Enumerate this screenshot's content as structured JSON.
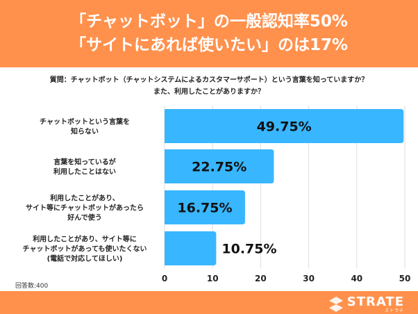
{
  "header": {
    "line1": "「チャットボット」の一般認知率50%",
    "line2": "「サイトにあれば使いたい」のは17%"
  },
  "question": {
    "line1": "質問：チャットボット（チャットシステムによるカスタマーサポート）という言葉を知っていますか？",
    "line2": "また、利用したことがありますか？"
  },
  "respondents": "回答数:400",
  "logo": {
    "name": "STRATE",
    "sub": "ストラテ"
  },
  "colors": {
    "bar": "#38B6FF",
    "header": "#FF914D",
    "grid": "#DDDDDD"
  },
  "chart_data": {
    "type": "bar",
    "orientation": "horizontal",
    "categories": [
      [
        "チャットボットという言葉を",
        "知らない"
      ],
      [
        "言葉を知っているが",
        "利用したことはない"
      ],
      [
        "利用したことがあり、",
        "サイト等にチャットボットがあったら",
        "好んで使う"
      ],
      [
        "利用したことがあり、サイト等に",
        "チャットボットがあっても使いたくない",
        "(電話で対応してほしい)"
      ]
    ],
    "values": [
      49.75,
      22.75,
      16.75,
      10.75
    ],
    "labels": [
      "49.75%",
      "22.75%",
      "16.75%",
      "10.75%"
    ],
    "xlim": [
      0,
      50
    ],
    "ticks": [
      "0",
      "10",
      "20",
      "30",
      "40",
      "50"
    ],
    "grid": true
  }
}
